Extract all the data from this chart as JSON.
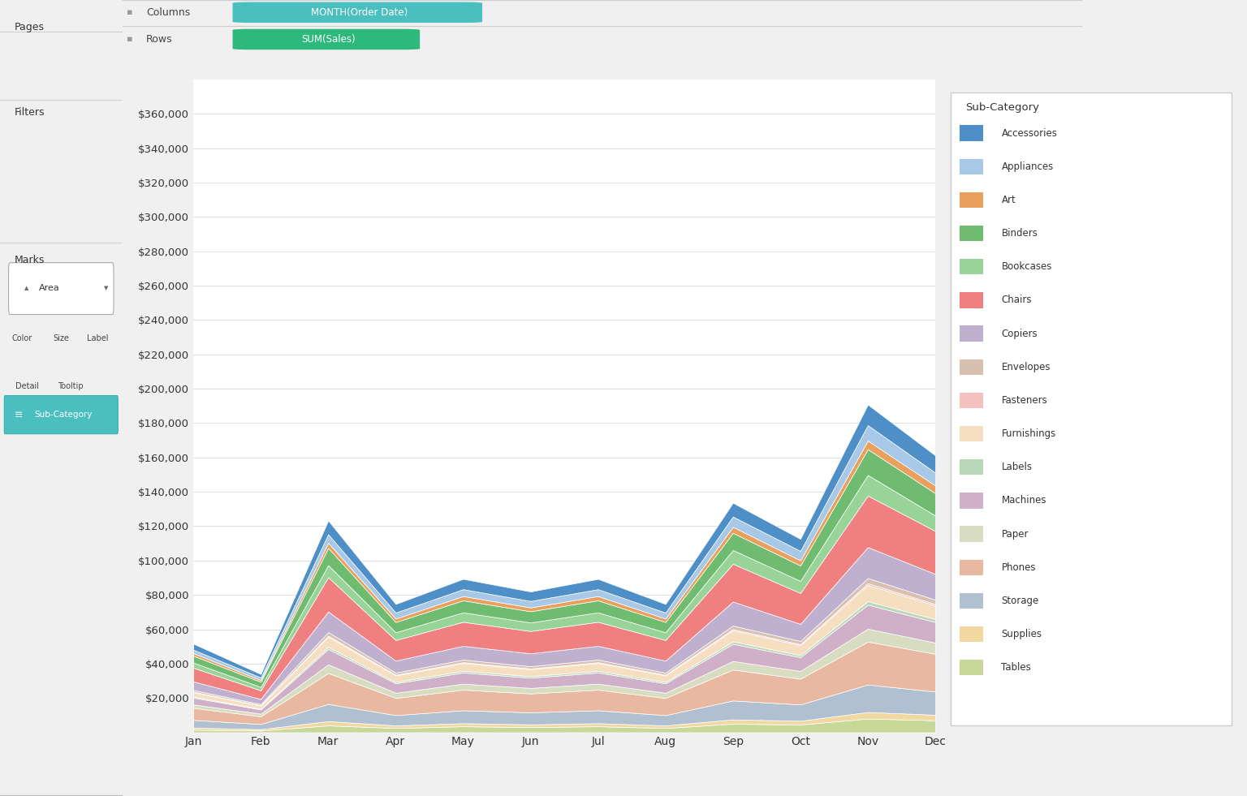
{
  "months": [
    "Jan",
    "Feb",
    "Mar",
    "Apr",
    "May",
    "Jun",
    "Jul",
    "Aug",
    "Sep",
    "Oct",
    "Nov",
    "Dec"
  ],
  "categories": [
    "Accessories",
    "Appliances",
    "Art",
    "Binders",
    "Bookcases",
    "Chairs",
    "Copiers",
    "Envelopes",
    "Fasteners",
    "Furnishings",
    "Labels",
    "Machines",
    "Paper",
    "Phones",
    "Storage",
    "Supplies",
    "Tables"
  ],
  "cat_colors": {
    "Accessories": "#4e8fc7",
    "Appliances": "#a8c8e8",
    "Art": "#e8a05c",
    "Binders": "#6fbb6f",
    "Bookcases": "#98d498",
    "Chairs": "#f08080",
    "Copiers": "#c0b0d0",
    "Envelopes": "#d8c0b0",
    "Fasteners": "#f5c0c0",
    "Furnishings": "#f5dfc0",
    "Labels": "#b8d8b8",
    "Machines": "#d0b0c8",
    "Paper": "#d8dcc0",
    "Phones": "#e8b8a0",
    "Storage": "#b0c0d0",
    "Supplies": "#f0d8a0",
    "Tables": "#c8d898"
  },
  "data": {
    "Tables": [
      1500,
      1000,
      4000,
      2500,
      3500,
      3000,
      3500,
      2500,
      5000,
      4500,
      8000,
      7000
    ],
    "Supplies": [
      1200,
      800,
      2500,
      1500,
      1800,
      1600,
      1800,
      1500,
      2500,
      2200,
      3800,
      3200
    ],
    "Storage": [
      4500,
      3000,
      10000,
      6000,
      7500,
      7000,
      7500,
      6000,
      11000,
      9500,
      16000,
      13500
    ],
    "Phones": [
      7000,
      4500,
      18000,
      10000,
      12000,
      11000,
      12000,
      10000,
      18000,
      15000,
      25000,
      22000
    ],
    "Paper": [
      2000,
      1500,
      5000,
      3000,
      3500,
      3200,
      3500,
      3000,
      5000,
      4500,
      7500,
      6500
    ],
    "Machines": [
      4000,
      2500,
      9000,
      5500,
      6500,
      6000,
      6500,
      5500,
      10000,
      8000,
      14000,
      12000
    ],
    "Labels": [
      600,
      400,
      1200,
      800,
      1000,
      900,
      1000,
      800,
      1400,
      1200,
      2000,
      1700
    ],
    "Furnishings": [
      2500,
      1800,
      6000,
      3800,
      4500,
      4000,
      4500,
      3800,
      6500,
      5800,
      9500,
      8000
    ],
    "Fasteners": [
      300,
      200,
      600,
      400,
      500,
      450,
      500,
      400,
      700,
      600,
      1000,
      800
    ],
    "Envelopes": [
      1000,
      700,
      2000,
      1200,
      1500,
      1300,
      1500,
      1200,
      2000,
      1800,
      3000,
      2500
    ],
    "Copiers": [
      5000,
      3000,
      12000,
      7000,
      8000,
      7500,
      8000,
      7000,
      14000,
      10000,
      18000,
      15000
    ],
    "Chairs": [
      8000,
      5000,
      20000,
      12000,
      14000,
      13000,
      14000,
      12000,
      22000,
      18000,
      30000,
      25000
    ],
    "Bookcases": [
      3000,
      2000,
      7000,
      4500,
      5500,
      5000,
      5500,
      4500,
      8000,
      7000,
      12000,
      9000
    ],
    "Binders": [
      4000,
      3000,
      10000,
      6000,
      7000,
      6500,
      7000,
      6000,
      10000,
      9000,
      15000,
      13000
    ],
    "Art": [
      1500,
      1000,
      3000,
      2000,
      2500,
      2200,
      2500,
      2000,
      3500,
      3000,
      5000,
      4500
    ],
    "Appliances": [
      2000,
      1500,
      5000,
      3500,
      4000,
      3800,
      4000,
      3500,
      6000,
      5500,
      9000,
      7500
    ],
    "Accessories": [
      3500,
      2000,
      8000,
      5000,
      6000,
      5500,
      6000,
      5000,
      8000,
      7000,
      12000,
      10000
    ]
  },
  "stack_order": [
    "Tables",
    "Supplies",
    "Storage",
    "Phones",
    "Paper",
    "Machines",
    "Labels",
    "Furnishings",
    "Fasteners",
    "Envelopes",
    "Copiers",
    "Chairs",
    "Bookcases",
    "Binders",
    "Art",
    "Appliances",
    "Accessories"
  ],
  "ylim": [
    0,
    380000
  ],
  "yticks": [
    20000,
    40000,
    60000,
    80000,
    100000,
    120000,
    140000,
    160000,
    180000,
    200000,
    220000,
    240000,
    260000,
    280000,
    300000,
    320000,
    340000,
    360000
  ],
  "background_color": "#f0f0f0",
  "chart_bg": "#ffffff",
  "legend_title": "Sub-Category",
  "legend_categories": [
    "Accessories",
    "Appliances",
    "Art",
    "Binders",
    "Bookcases",
    "Chairs",
    "Copiers",
    "Envelopes",
    "Fasteners",
    "Furnishings",
    "Labels",
    "Machines",
    "Paper",
    "Phones",
    "Storage",
    "Supplies",
    "Tables"
  ]
}
